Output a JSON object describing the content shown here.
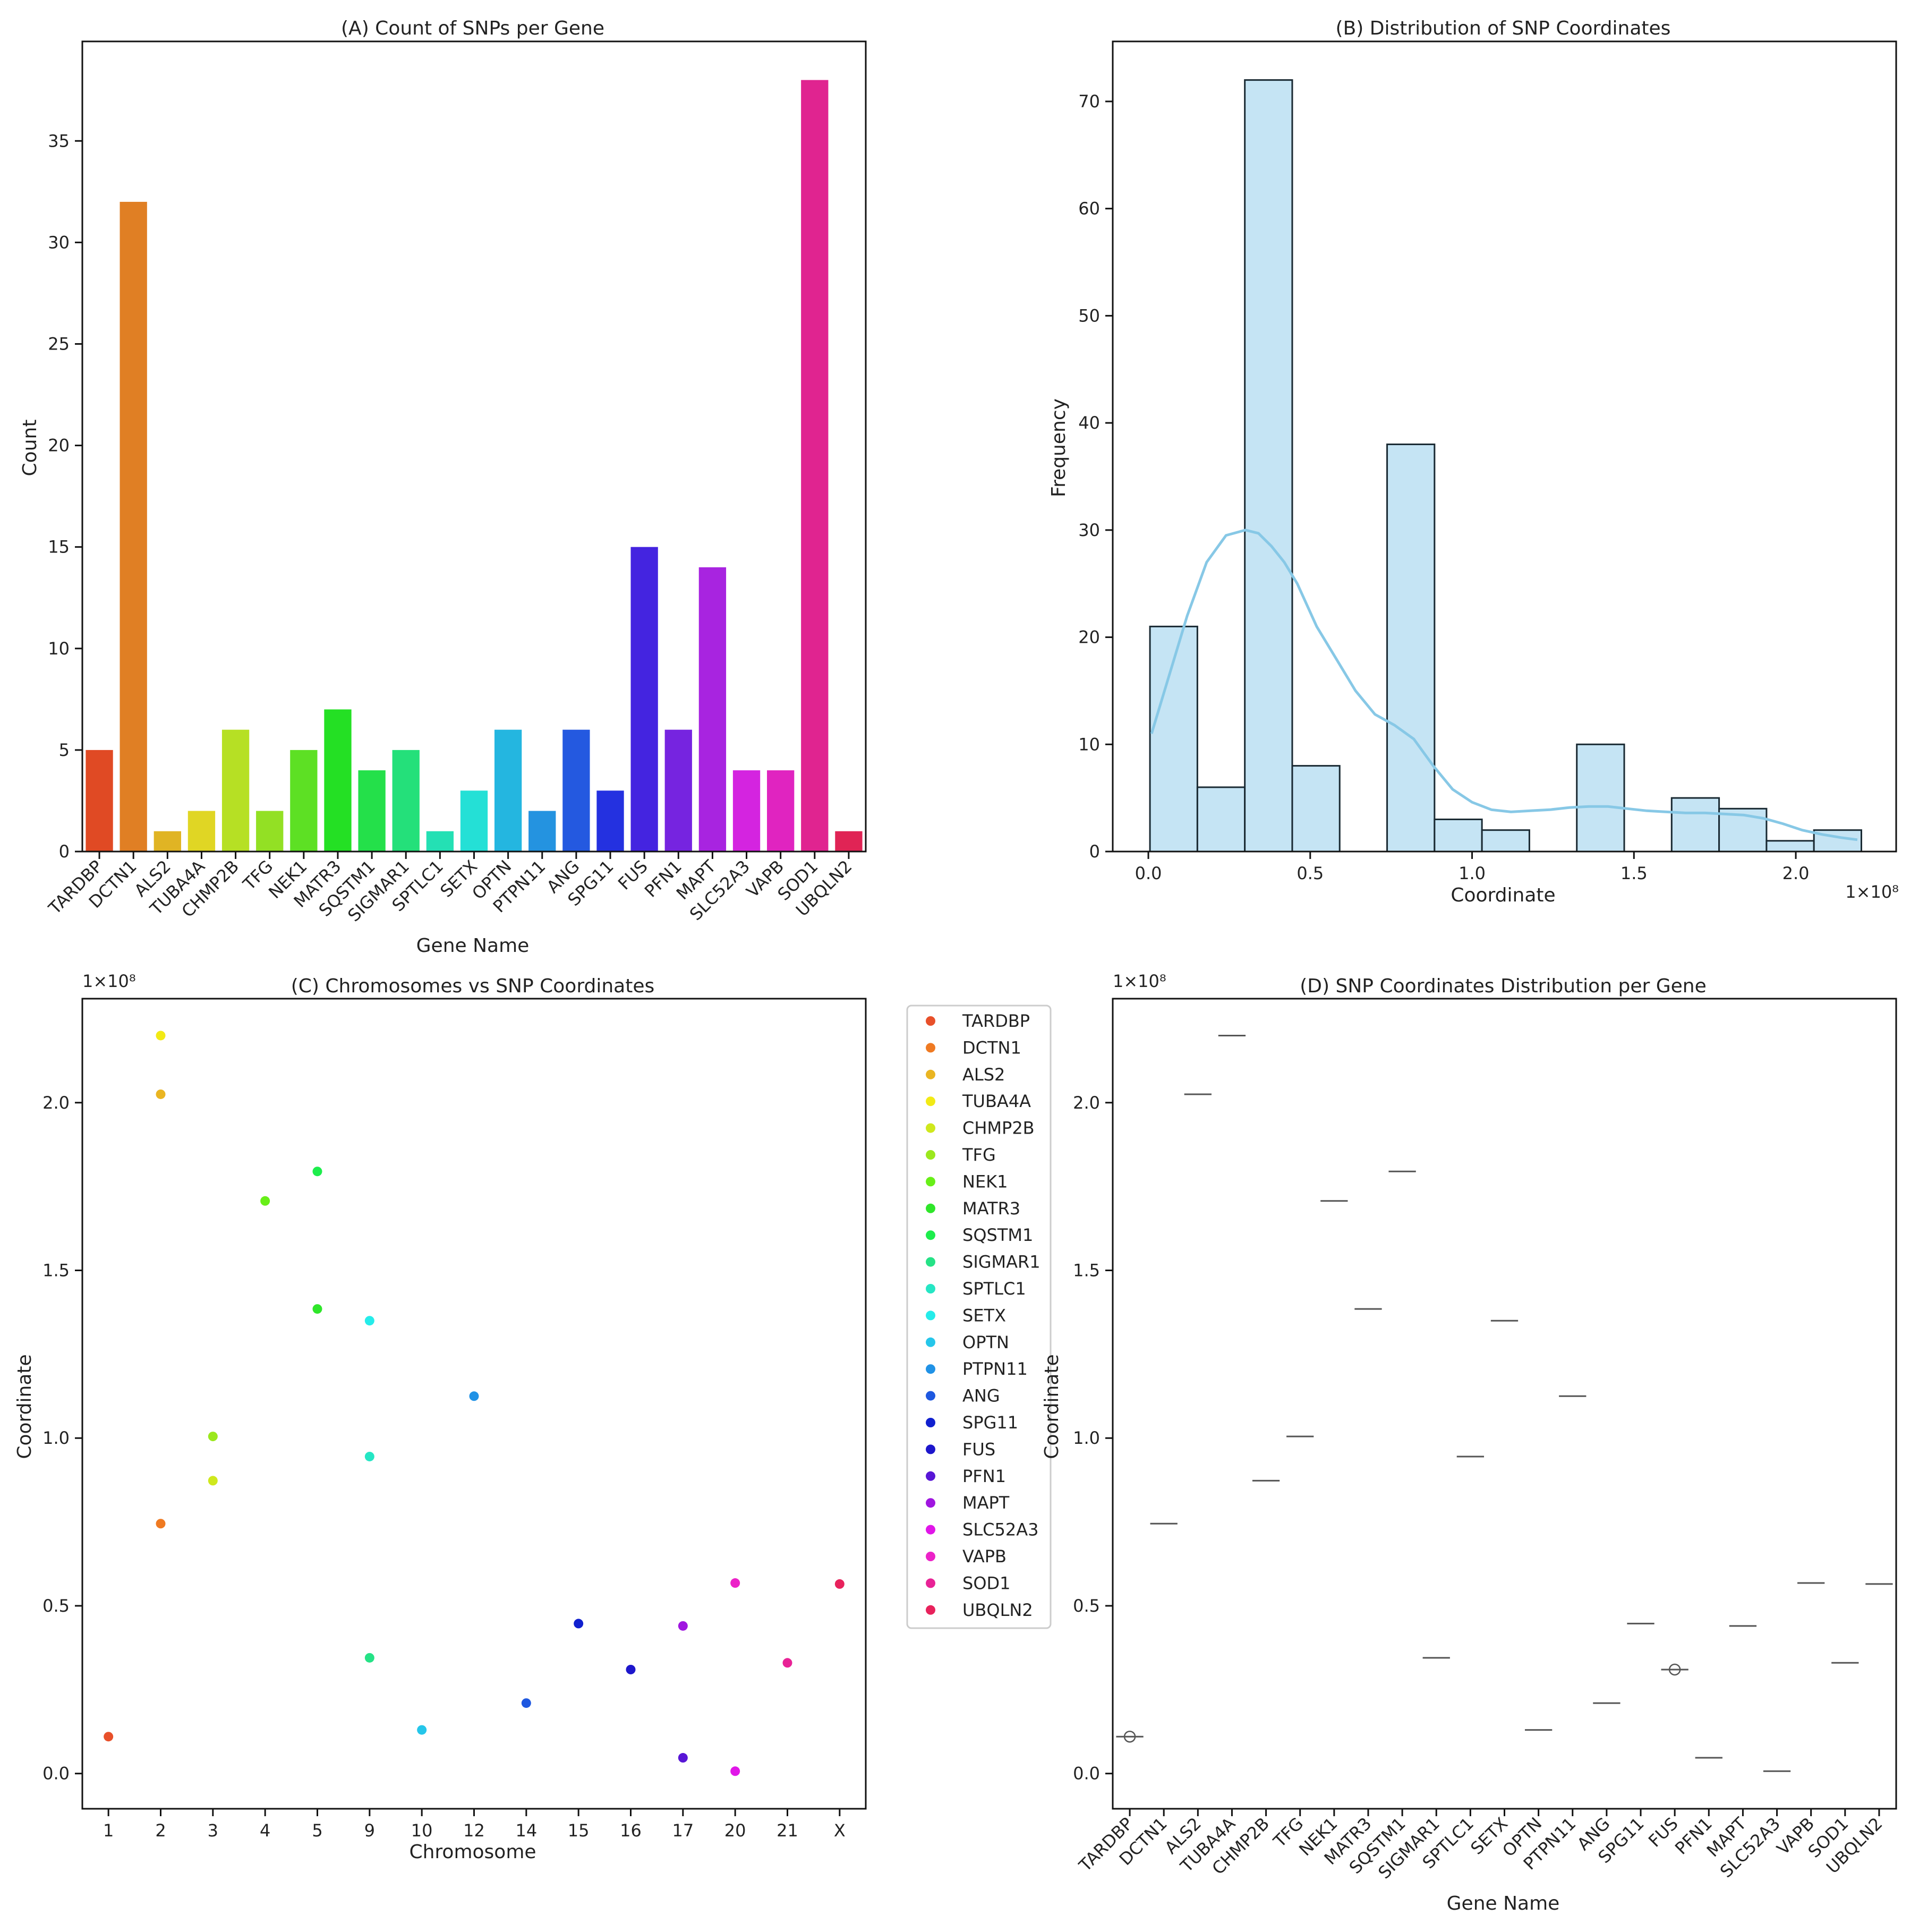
{
  "chart_data": [
    {
      "panel": "A",
      "type": "bar",
      "title": "(A) Count of SNPs per Gene",
      "xlabel": "Gene Name",
      "ylabel": "Count",
      "ylim": [
        0,
        39.9
      ],
      "yticks": [
        0,
        5,
        10,
        15,
        20,
        25,
        30,
        35
      ],
      "categories": [
        "TARDBP",
        "DCTN1",
        "ALS2",
        "TUBA4A",
        "CHMP2B",
        "TFG",
        "NEK1",
        "MATR3",
        "SQSTM1",
        "SIGMAR1",
        "SPTLC1",
        "SETX",
        "OPTN",
        "PTPN11",
        "ANG",
        "SPG11",
        "FUS",
        "PFN1",
        "MAPT",
        "SLC52A3",
        "VAPB",
        "SOD1",
        "UBQLN2"
      ],
      "values": [
        5,
        32,
        1,
        2,
        6,
        2,
        5,
        7,
        4,
        5,
        1,
        3,
        6,
        2,
        6,
        3,
        15,
        6,
        14,
        4,
        4,
        38,
        1
      ],
      "colors": [
        "#e04a24",
        "#e07f24",
        "#e0b424",
        "#e0d624",
        "#b6e024",
        "#93e024",
        "#5de024",
        "#24e024",
        "#24e04a",
        "#24e07a",
        "#24e0b4",
        "#24e0d6",
        "#24b6e0",
        "#2493e0",
        "#2459e0",
        "#2431e0",
        "#4424e0",
        "#7624e0",
        "#a824e0",
        "#d424e0",
        "#e024c0",
        "#e02490",
        "#e02455"
      ]
    },
    {
      "panel": "B",
      "type": "histogram",
      "title": "(B) Distribution of SNP Coordinates",
      "xlabel": "Coordinate",
      "ylabel": "Frequency",
      "x_scale_label": "1×10⁸",
      "xlim": [
        -0.11,
        2.31
      ],
      "ylim": [
        0,
        75.6
      ],
      "xticks": [
        0.0,
        0.5,
        1.0,
        1.5,
        2.0
      ],
      "xtick_labels": [
        "0.0",
        "0.5",
        "1.0",
        "1.5",
        "2.0"
      ],
      "yticks": [
        0,
        10,
        20,
        30,
        40,
        50,
        60,
        70
      ],
      "bin_width": 0.1465,
      "bin_start": 0.005,
      "counts": [
        21,
        6,
        72,
        8,
        0,
        38,
        3,
        2,
        0,
        10,
        0,
        5,
        4,
        1,
        2
      ],
      "bar_color": "#c5e4f4",
      "edge_color": "#1a2a33",
      "kde_color": "#87c8e6",
      "kde_x": [
        0.01,
        0.06,
        0.12,
        0.18,
        0.24,
        0.3,
        0.34,
        0.38,
        0.42,
        0.46,
        0.52,
        0.58,
        0.64,
        0.7,
        0.76,
        0.82,
        0.88,
        0.94,
        1.0,
        1.06,
        1.12,
        1.18,
        1.24,
        1.3,
        1.36,
        1.42,
        1.48,
        1.54,
        1.6,
        1.66,
        1.72,
        1.78,
        1.84,
        1.9,
        1.96,
        2.02,
        2.08,
        2.14,
        2.19
      ],
      "kde_y": [
        11,
        16,
        22,
        27,
        29.5,
        30,
        29.7,
        28.5,
        27,
        25,
        21,
        18,
        15,
        12.8,
        11.8,
        10.5,
        8,
        5.8,
        4.6,
        3.9,
        3.7,
        3.8,
        3.9,
        4.1,
        4.2,
        4.2,
        4.0,
        3.8,
        3.7,
        3.6,
        3.6,
        3.5,
        3.4,
        3.1,
        2.6,
        2.0,
        1.6,
        1.3,
        1.1
      ]
    },
    {
      "panel": "C",
      "type": "scatter",
      "title": "(C) Chromosomes vs SNP Coordinates",
      "xlabel": "Chromosome",
      "ylabel": "Coordinate",
      "y_scale_label": "1×10⁸",
      "ylim": [
        -0.105,
        2.31
      ],
      "yticks": [
        0.0,
        0.5,
        1.0,
        1.5,
        2.0
      ],
      "ytick_labels": [
        "0.0",
        "0.5",
        "1.0",
        "1.5",
        "2.0"
      ],
      "x_categories": [
        "1",
        "2",
        "3",
        "4",
        "5",
        "9",
        "10",
        "12",
        "14",
        "15",
        "16",
        "17",
        "20",
        "21",
        "X"
      ],
      "points": [
        {
          "gene": "TARDBP",
          "chrom": "1",
          "y": 0.11
        },
        {
          "gene": "DCTN1",
          "chrom": "2",
          "y": 0.745
        },
        {
          "gene": "ALS2",
          "chrom": "2",
          "y": 2.025
        },
        {
          "gene": "TUBA4A",
          "chrom": "2",
          "y": 2.2
        },
        {
          "gene": "CHMP2B",
          "chrom": "3",
          "y": 0.873
        },
        {
          "gene": "TFG",
          "chrom": "3",
          "y": 1.005
        },
        {
          "gene": "NEK1",
          "chrom": "4",
          "y": 1.707
        },
        {
          "gene": "MATR3",
          "chrom": "5",
          "y": 1.385
        },
        {
          "gene": "SQSTM1",
          "chrom": "5",
          "y": 1.795
        },
        {
          "gene": "SIGMAR1",
          "chrom": "9",
          "y": 0.345
        },
        {
          "gene": "SPTLC1",
          "chrom": "9",
          "y": 0.945
        },
        {
          "gene": "SETX",
          "chrom": "9",
          "y": 1.35
        },
        {
          "gene": "OPTN",
          "chrom": "10",
          "y": 0.13
        },
        {
          "gene": "PTPN11",
          "chrom": "12",
          "y": 1.125
        },
        {
          "gene": "ANG",
          "chrom": "14",
          "y": 0.21
        },
        {
          "gene": "SPG11",
          "chrom": "15",
          "y": 0.447
        },
        {
          "gene": "FUS",
          "chrom": "16",
          "y": 0.31
        },
        {
          "gene": "PFN1",
          "chrom": "17",
          "y": 0.047
        },
        {
          "gene": "MAPT",
          "chrom": "17",
          "y": 0.44
        },
        {
          "gene": "SLC52A3",
          "chrom": "20",
          "y": 0.007
        },
        {
          "gene": "VAPB",
          "chrom": "20",
          "y": 0.568
        },
        {
          "gene": "SOD1",
          "chrom": "21",
          "y": 0.33
        },
        {
          "gene": "UBQLN2",
          "chrom": "X",
          "y": 0.565
        }
      ],
      "legend": [
        "TARDBP",
        "DCTN1",
        "ALS2",
        "TUBA4A",
        "CHMP2B",
        "TFG",
        "NEK1",
        "MATR3",
        "SQSTM1",
        "SIGMAR1",
        "SPTLC1",
        "SETX",
        "OPTN",
        "PTPN11",
        "ANG",
        "SPG11",
        "FUS",
        "PFN1",
        "MAPT",
        "SLC52A3",
        "VAPB",
        "SOD1",
        "UBQLN2"
      ],
      "legend_colors": [
        "#e8502a",
        "#ef7a22",
        "#eab522",
        "#f2ea15",
        "#cfe81d",
        "#9be81d",
        "#68ef18",
        "#2fe62a",
        "#1ded4c",
        "#25e286",
        "#25e6c4",
        "#25ecea",
        "#25c6ea",
        "#2092e6",
        "#1e58e0",
        "#1020cf",
        "#1d16cc",
        "#5816d6",
        "#a016e0",
        "#e016e8",
        "#ec22c8",
        "#e82296",
        "#e8225c"
      ],
      "legend_position": "right"
    },
    {
      "panel": "D",
      "type": "box",
      "title": "(D) SNP Coordinates Distribution per Gene",
      "xlabel": "Gene Name",
      "ylabel": "Coordinate",
      "y_scale_label": "1×10⁸",
      "ylim": [
        -0.105,
        2.31
      ],
      "yticks": [
        0.0,
        0.5,
        1.0,
        1.5,
        2.0
      ],
      "ytick_labels": [
        "0.0",
        "0.5",
        "1.0",
        "1.5",
        "2.0"
      ],
      "categories": [
        "TARDBP",
        "DCTN1",
        "ALS2",
        "TUBA4A",
        "CHMP2B",
        "TFG",
        "NEK1",
        "MATR3",
        "SQSTM1",
        "SIGMAR1",
        "SPTLC1",
        "SETX",
        "OPTN",
        "PTPN11",
        "ANG",
        "SPG11",
        "FUS",
        "PFN1",
        "MAPT",
        "SLC52A3",
        "VAPB",
        "SOD1",
        "UBQLN2"
      ],
      "medians": [
        0.11,
        0.745,
        2.025,
        2.2,
        0.873,
        1.005,
        1.707,
        1.385,
        1.795,
        0.345,
        0.945,
        1.35,
        0.13,
        1.125,
        0.21,
        0.447,
        0.31,
        0.047,
        0.44,
        0.007,
        0.568,
        0.33,
        0.565
      ],
      "outliers": [
        {
          "gene": "TARDBP",
          "y": 0.11
        },
        {
          "gene": "FUS",
          "y": 0.31
        }
      ]
    }
  ]
}
